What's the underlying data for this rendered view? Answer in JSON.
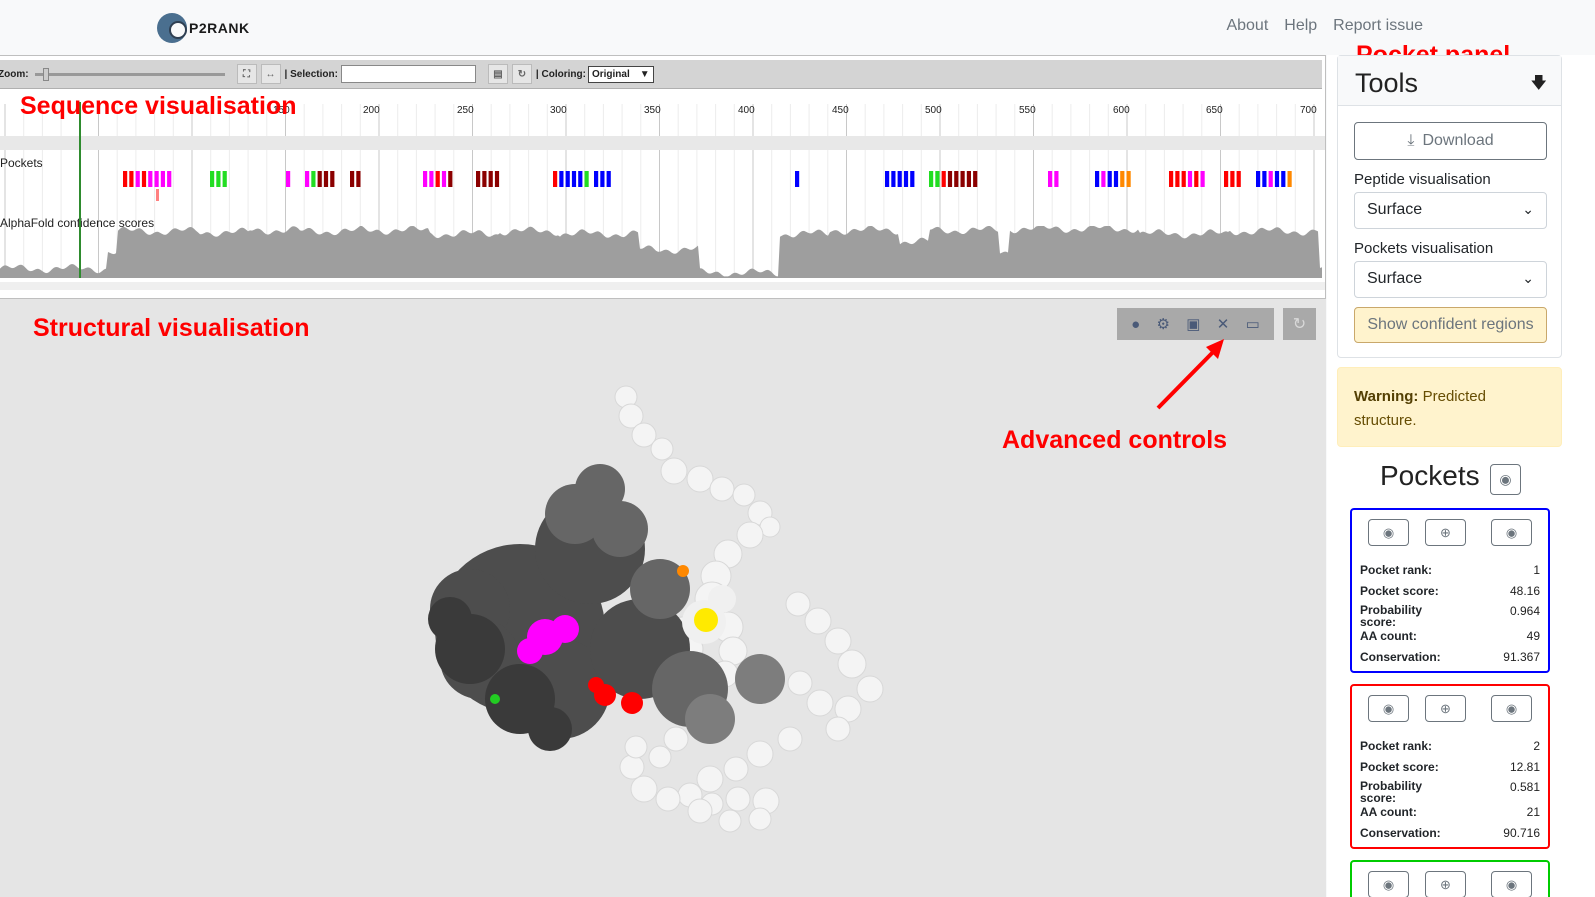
{
  "nav": {
    "logo_text": "P2RANK",
    "links": [
      "About",
      "Help",
      "Report issue"
    ]
  },
  "annotations": {
    "pocket_panel": "Pocket panel",
    "sequence": "Sequence visualisation",
    "structural": "Structural visualisation",
    "advanced": "Advanced controls"
  },
  "sequence": {
    "zoom_label": "Zoom:",
    "selection_label": "| Selection:",
    "selection_value": "",
    "coloring_label": "| Coloring:",
    "coloring_value": "Original",
    "ticks": [
      "150",
      "200",
      "250",
      "300",
      "350",
      "400",
      "450",
      "500",
      "550",
      "600",
      "650",
      "700"
    ],
    "pockets_label": "Pockets",
    "confidence_label": "AlphaFold confidence scores"
  },
  "tools": {
    "title": "Tools",
    "download_label": "Download",
    "peptide_label": "Peptide visualisation",
    "peptide_value": "Surface",
    "pockets_vis_label": "Pockets visualisation",
    "pockets_vis_value": "Surface",
    "confident_label": "Show confident regions"
  },
  "warning": {
    "bold": "Warning:",
    "text": " Predicted structure."
  },
  "pockets": {
    "title": "Pockets",
    "labels": {
      "rank": "Pocket rank:",
      "score": "Pocket score:",
      "prob": "Probability score:",
      "aa": "AA count:",
      "cons": "Conservation:"
    },
    "cards": [
      {
        "color": "#0000ff",
        "rank": "1",
        "score": "48.16",
        "prob": "0.964",
        "aa": "49",
        "cons": "91.367"
      },
      {
        "color": "#ff0000",
        "rank": "2",
        "score": "12.81",
        "prob": "0.581",
        "aa": "21",
        "cons": "90.716"
      },
      {
        "color": "#00cc00",
        "rank": "",
        "score": "",
        "prob": "",
        "aa": "",
        "cons": ""
      }
    ]
  }
}
